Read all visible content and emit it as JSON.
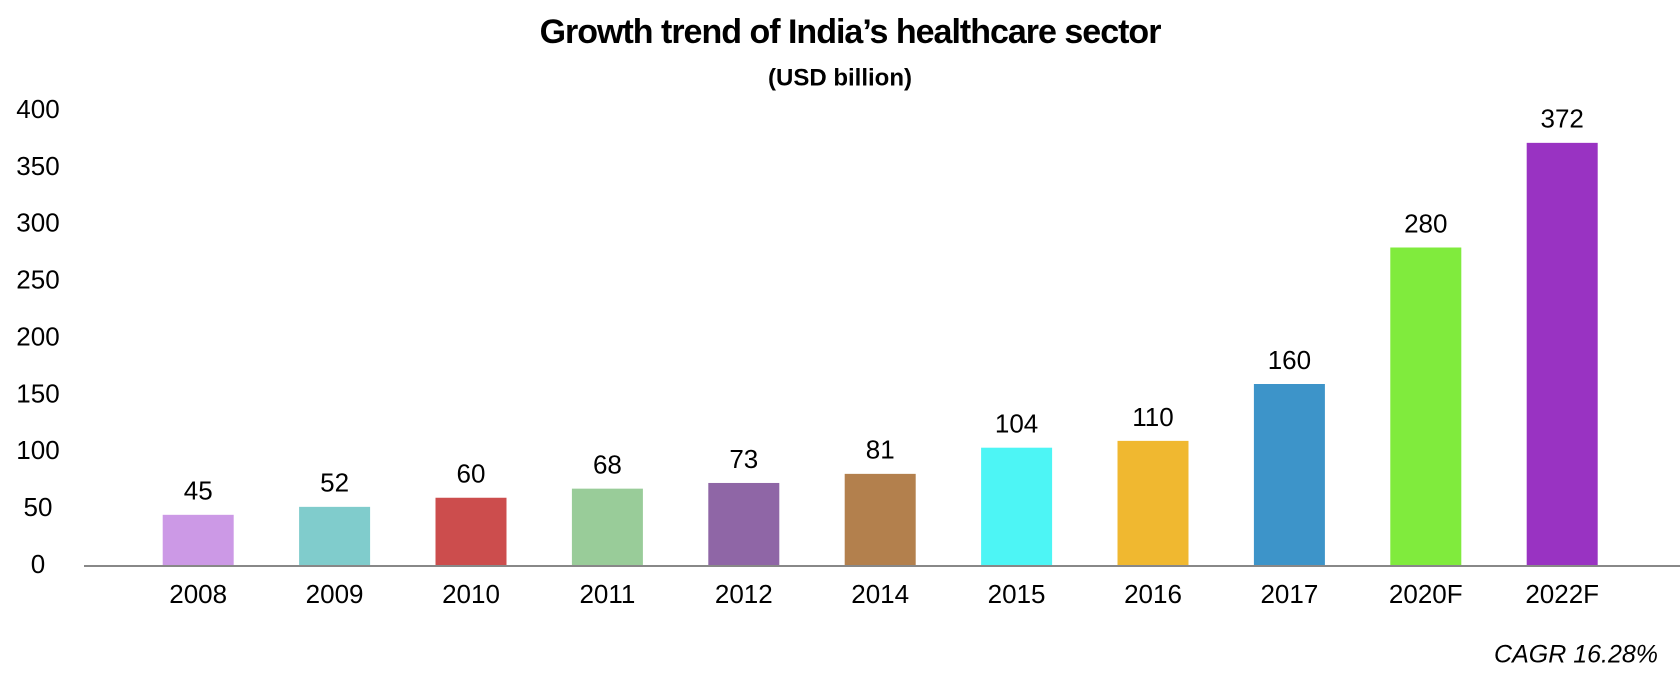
{
  "chart_data": {
    "type": "bar",
    "title": "Growth trend of India’s healthcare sector",
    "subtitle": "(USD billion)",
    "annotation": "CAGR 16.28%",
    "categories": [
      "2008",
      "2009",
      "2010",
      "2011",
      "2012",
      "2014",
      "2015",
      "2016",
      "2017",
      "2020F",
      "2022F"
    ],
    "values": [
      45,
      52,
      60,
      68,
      73,
      81,
      104,
      110,
      160,
      280,
      372
    ],
    "colors": [
      "#cc99e6",
      "#80cccc",
      "#cc4d4d",
      "#99cc99",
      "#8f66a6",
      "#b3804d",
      "#4df5f5",
      "#f0b830",
      "#3d94c9",
      "#80eb3d",
      "#9933c2"
    ],
    "ylim": [
      0,
      400
    ],
    "yticks": [
      0,
      50,
      100,
      150,
      200,
      250,
      300,
      350,
      400
    ],
    "grid": false
  }
}
